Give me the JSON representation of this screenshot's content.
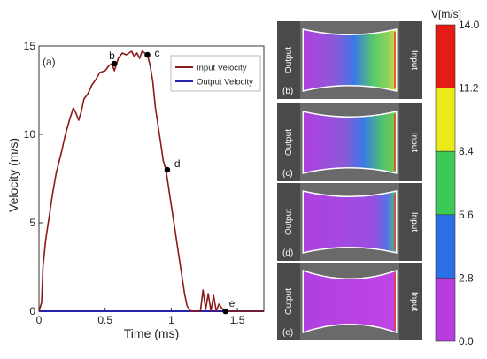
{
  "chart_data": [
    {
      "type": "line",
      "panel_label": "(a)",
      "xlabel": "Time (ms)",
      "ylabel": "Velocity (m/s)",
      "xlim": [
        0,
        1.7
      ],
      "ylim": [
        0,
        15
      ],
      "x_ticks": [
        0,
        0.5,
        1,
        1.5
      ],
      "x_tick_labels": [
        "0",
        "0.5",
        "1",
        "1.5"
      ],
      "y_ticks": [
        0,
        5,
        10,
        15
      ],
      "y_tick_labels": [
        "0",
        "5",
        "10",
        "15"
      ],
      "legend_position": "top-right",
      "series": [
        {
          "name": "Input Velocity",
          "color": "#8B1A1A",
          "x": [
            0,
            0.02,
            0.03,
            0.05,
            0.08,
            0.1,
            0.13,
            0.17,
            0.2,
            0.23,
            0.26,
            0.28,
            0.3,
            0.32,
            0.34,
            0.37,
            0.4,
            0.43,
            0.46,
            0.5,
            0.53,
            0.55,
            0.57,
            0.6,
            0.63,
            0.66,
            0.7,
            0.72,
            0.74,
            0.76,
            0.78,
            0.8,
            0.82,
            0.84,
            0.86,
            0.88,
            0.9,
            0.92,
            0.94,
            0.96,
            0.98,
            1.0,
            1.02,
            1.04,
            1.06,
            1.08,
            1.1,
            1.12,
            1.14,
            1.16,
            1.18,
            1.2,
            1.22,
            1.24,
            1.26,
            1.28,
            1.3,
            1.32,
            1.34,
            1.36,
            1.4,
            1.45,
            1.5,
            1.6,
            1.7
          ],
          "y": [
            0,
            0.5,
            2.5,
            4.0,
            5.5,
            6.5,
            7.8,
            9.0,
            10.0,
            10.8,
            11.5,
            11.2,
            10.8,
            11.3,
            12.0,
            12.3,
            12.8,
            13.1,
            13.5,
            13.6,
            13.9,
            14.0,
            13.6,
            14.3,
            14.6,
            14.5,
            14.7,
            14.4,
            14.6,
            14.3,
            14.7,
            14.6,
            14.5,
            13.9,
            13.0,
            11.5,
            10.5,
            9.5,
            8.5,
            8.0,
            7.0,
            6.0,
            5.0,
            4.0,
            3.0,
            2.0,
            1.0,
            0.3,
            0.05,
            0.0,
            0.0,
            0.0,
            0.0,
            1.2,
            0.1,
            1.0,
            0.0,
            0.9,
            0.0,
            0.4,
            0.0,
            0.0,
            0.0,
            0.0,
            0.0
          ]
        },
        {
          "name": "Output Velocity",
          "color": "#2222AA",
          "x": [
            0,
            0.5,
            1.0,
            1.5,
            1.7
          ],
          "y": [
            0,
            0,
            0,
            0,
            0
          ]
        }
      ],
      "points": [
        {
          "label": "b",
          "x": 0.57,
          "y": 14.0
        },
        {
          "label": "c",
          "x": 0.82,
          "y": 14.5
        },
        {
          "label": "d",
          "x": 0.97,
          "y": 8.0
        },
        {
          "label": "e",
          "x": 1.41,
          "y": 0.0
        }
      ]
    },
    {
      "type": "heatmap",
      "colorbar_title": "V[m/s]",
      "colorbar_ticks": [
        "14.0",
        "11.2",
        "8.4",
        "5.6",
        "2.8",
        "0.0"
      ],
      "colorbar_colors": [
        "#e51c16",
        "#eaea1a",
        "#3dc956",
        "#2a6fe6",
        "#b73ddf"
      ],
      "panels": [
        {
          "label": "(b)",
          "left_text": "Output",
          "right_text": "Input"
        },
        {
          "label": "(c)",
          "left_text": "Output",
          "right_text": "Input"
        },
        {
          "label": "(d)",
          "left_text": "Output",
          "right_text": "Input"
        },
        {
          "label": "(e)",
          "left_text": "Output",
          "right_text": "Input"
        }
      ]
    }
  ]
}
